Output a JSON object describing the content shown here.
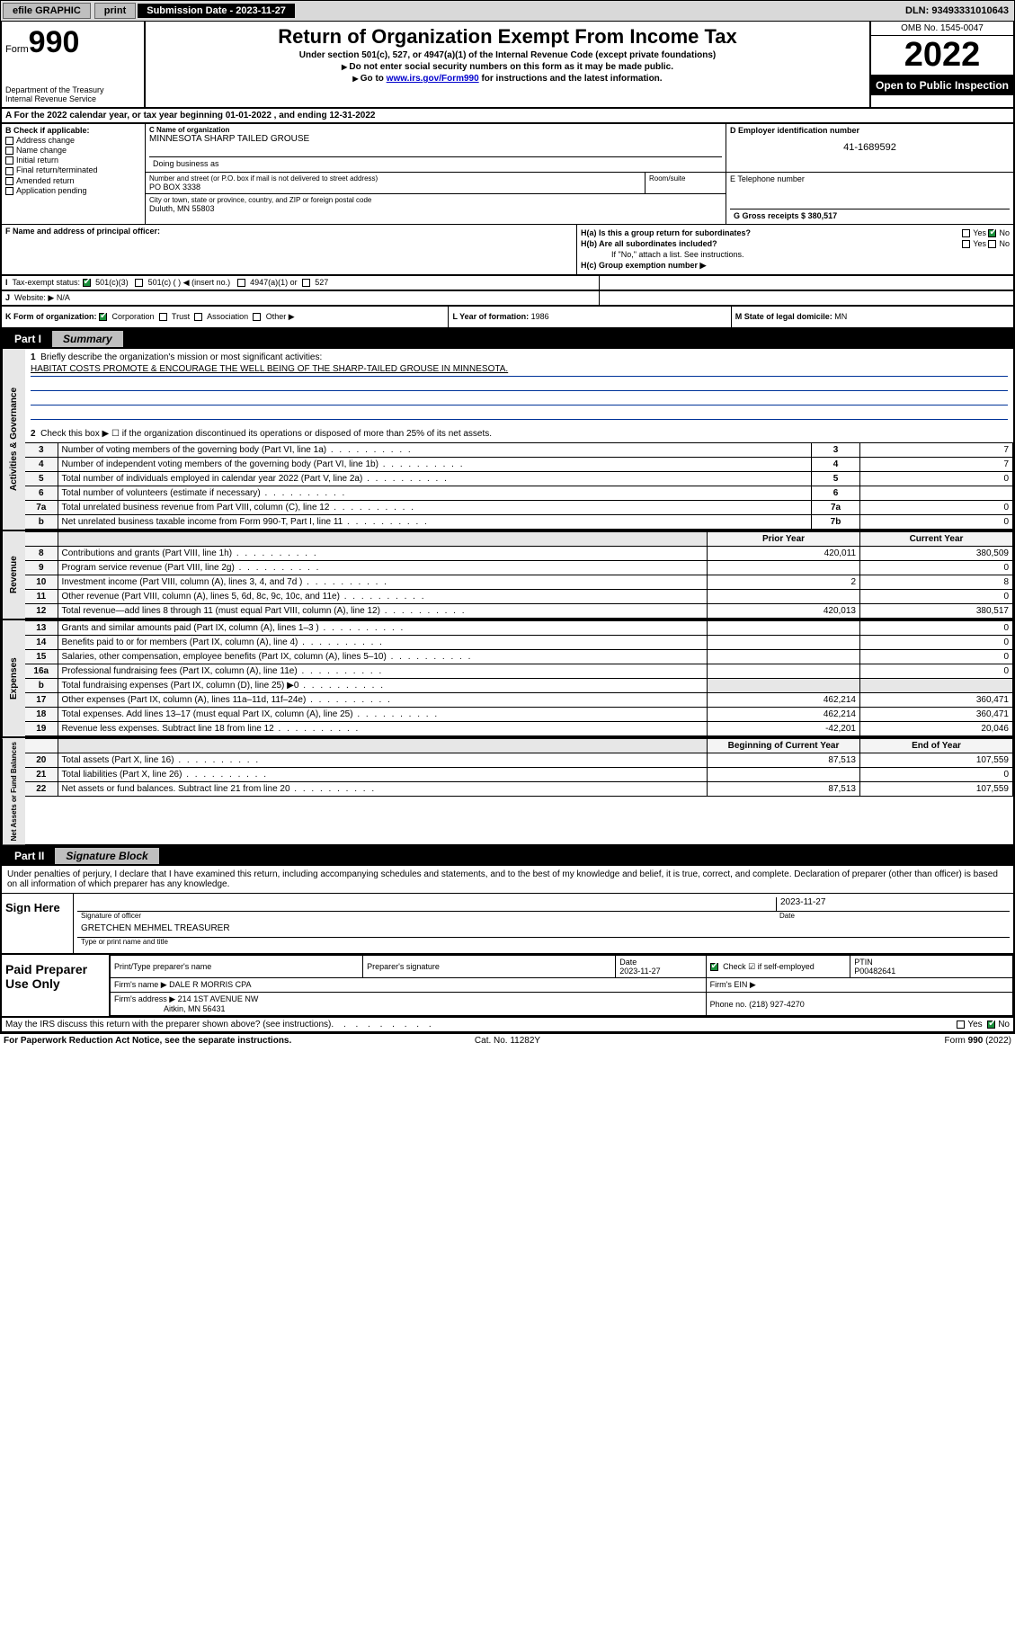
{
  "topbar": {
    "efile": "efile GRAPHIC",
    "print": "print",
    "submission_label": "Submission Date - 2023-11-27",
    "dln": "DLN: 93493331010643"
  },
  "header": {
    "form_prefix": "Form",
    "form_no": "990",
    "dept": "Department of the Treasury",
    "irs": "Internal Revenue Service",
    "title": "Return of Organization Exempt From Income Tax",
    "sub1": "Under section 501(c), 527, or 4947(a)(1) of the Internal Revenue Code (except private foundations)",
    "sub2": "Do not enter social security numbers on this form as it may be made public.",
    "sub3_pre": "Go to ",
    "sub3_link": "www.irs.gov/Form990",
    "sub3_post": " for instructions and the latest information.",
    "omb": "OMB No. 1545-0047",
    "year": "2022",
    "open": "Open to Public Inspection"
  },
  "row_a": {
    "text_pre": "A For the 2022 calendar year, or tax year beginning ",
    "begin": "01-01-2022",
    "mid": " , and ending ",
    "end": "12-31-2022"
  },
  "b": {
    "label": "B Check if applicable:",
    "opts": [
      "Address change",
      "Name change",
      "Initial return",
      "Final return/terminated",
      "Amended return",
      "Application pending"
    ]
  },
  "c": {
    "name_lbl": "C Name of organization",
    "name_val": "MINNESOTA SHARP TAILED GROUSE",
    "dba_lbl": "Doing business as",
    "dba_val": "",
    "street_lbl": "Number and street (or P.O. box if mail is not delivered to street address)",
    "street_val": "PO BOX 3338",
    "room_lbl": "Room/suite",
    "city_lbl": "City or town, state or province, country, and ZIP or foreign postal code",
    "city_val": "Duluth, MN  55803"
  },
  "d": {
    "lbl": "D Employer identification number",
    "val": "41-1689592"
  },
  "e": {
    "lbl": "E Telephone number",
    "val": ""
  },
  "g": {
    "lbl": "G Gross receipts $",
    "val": "380,517"
  },
  "f": {
    "lbl": "F  Name and address of principal officer:",
    "val": ""
  },
  "h": {
    "a": "H(a)  Is this a group return for subordinates?",
    "b": "H(b)  Are all subordinates included?",
    "b2": "If \"No,\" attach a list. See instructions.",
    "c": "H(c)  Group exemption number ▶"
  },
  "i": {
    "lbl": "Tax-exempt status:",
    "opt1": "501(c)(3)",
    "opt2": "501(c) (  ) ◀ (insert no.)",
    "opt3": "4947(a)(1) or",
    "opt4": "527"
  },
  "j": {
    "lbl": "Website: ▶",
    "val": "N/A"
  },
  "k": {
    "lbl": "K Form of organization:",
    "opts": [
      "Corporation",
      "Trust",
      "Association",
      "Other ▶"
    ]
  },
  "l": {
    "lbl": "L Year of formation:",
    "val": "1986"
  },
  "m": {
    "lbl": "M State of legal domicile:",
    "val": "MN"
  },
  "part1": {
    "pt": "Part I",
    "ttl": "Summary"
  },
  "gov": {
    "tab": "Activities & Governance",
    "q1": "Briefly describe the organization's mission or most significant activities:",
    "q1val": "HABITAT COSTS PROMOTE & ENCOURAGE THE WELL BEING OF THE SHARP-TAILED GROUSE IN MINNESOTA.",
    "q2": "Check this box ▶ ☐  if the organization discontinued its operations or disposed of more than 25% of its net assets.",
    "rows": [
      {
        "n": "3",
        "d": "Number of voting members of the governing body (Part VI, line 1a)",
        "box": "3",
        "v": "7"
      },
      {
        "n": "4",
        "d": "Number of independent voting members of the governing body (Part VI, line 1b)",
        "box": "4",
        "v": "7"
      },
      {
        "n": "5",
        "d": "Total number of individuals employed in calendar year 2022 (Part V, line 2a)",
        "box": "5",
        "v": "0"
      },
      {
        "n": "6",
        "d": "Total number of volunteers (estimate if necessary)",
        "box": "6",
        "v": ""
      },
      {
        "n": "7a",
        "d": "Total unrelated business revenue from Part VIII, column (C), line 12",
        "box": "7a",
        "v": "0"
      },
      {
        "n": "b",
        "d": "Net unrelated business taxable income from Form 990-T, Part I, line 11",
        "box": "7b",
        "v": "0"
      }
    ]
  },
  "rev": {
    "tab": "Revenue",
    "hdr_prior": "Prior Year",
    "hdr_curr": "Current Year",
    "rows": [
      {
        "n": "8",
        "d": "Contributions and grants (Part VIII, line 1h)",
        "p": "420,011",
        "c": "380,509"
      },
      {
        "n": "9",
        "d": "Program service revenue (Part VIII, line 2g)",
        "p": "",
        "c": "0"
      },
      {
        "n": "10",
        "d": "Investment income (Part VIII, column (A), lines 3, 4, and 7d )",
        "p": "2",
        "c": "8"
      },
      {
        "n": "11",
        "d": "Other revenue (Part VIII, column (A), lines 5, 6d, 8c, 9c, 10c, and 11e)",
        "p": "",
        "c": "0"
      },
      {
        "n": "12",
        "d": "Total revenue—add lines 8 through 11 (must equal Part VIII, column (A), line 12)",
        "p": "420,013",
        "c": "380,517"
      }
    ]
  },
  "exp": {
    "tab": "Expenses",
    "rows": [
      {
        "n": "13",
        "d": "Grants and similar amounts paid (Part IX, column (A), lines 1–3 )",
        "p": "",
        "c": "0"
      },
      {
        "n": "14",
        "d": "Benefits paid to or for members (Part IX, column (A), line 4)",
        "p": "",
        "c": "0"
      },
      {
        "n": "15",
        "d": "Salaries, other compensation, employee benefits (Part IX, column (A), lines 5–10)",
        "p": "",
        "c": "0"
      },
      {
        "n": "16a",
        "d": "Professional fundraising fees (Part IX, column (A), line 11e)",
        "p": "",
        "c": "0"
      },
      {
        "n": "b",
        "d": "Total fundraising expenses (Part IX, column (D), line 25) ▶0",
        "p": "SHADE",
        "c": "SHADE"
      },
      {
        "n": "17",
        "d": "Other expenses (Part IX, column (A), lines 11a–11d, 11f–24e)",
        "p": "462,214",
        "c": "360,471"
      },
      {
        "n": "18",
        "d": "Total expenses. Add lines 13–17 (must equal Part IX, column (A), line 25)",
        "p": "462,214",
        "c": "360,471"
      },
      {
        "n": "19",
        "d": "Revenue less expenses. Subtract line 18 from line 12",
        "p": "-42,201",
        "c": "20,046"
      }
    ]
  },
  "net": {
    "tab": "Net Assets or Fund Balances",
    "hdr_beg": "Beginning of Current Year",
    "hdr_end": "End of Year",
    "rows": [
      {
        "n": "20",
        "d": "Total assets (Part X, line 16)",
        "p": "87,513",
        "c": "107,559"
      },
      {
        "n": "21",
        "d": "Total liabilities (Part X, line 26)",
        "p": "",
        "c": "0"
      },
      {
        "n": "22",
        "d": "Net assets or fund balances. Subtract line 21 from line 20",
        "p": "87,513",
        "c": "107,559"
      }
    ]
  },
  "part2": {
    "pt": "Part II",
    "ttl": "Signature Block"
  },
  "sig": {
    "decl": "Under penalties of perjury, I declare that I have examined this return, including accompanying schedules and statements, and to the best of my knowledge and belief, it is true, correct, and complete. Declaration of preparer (other than officer) is based on all information of which preparer has any knowledge.",
    "here": "Sign Here",
    "sig_officer": "Signature of officer",
    "date": "Date",
    "date_val": "2023-11-27",
    "name_title": "GRETCHEN MEHMEL TREASURER",
    "name_lbl": "Type or print name and title"
  },
  "paid": {
    "left": "Paid Preparer Use Only",
    "h1": "Print/Type preparer's name",
    "h2": "Preparer's signature",
    "h3": "Date",
    "h3v": "2023-11-27",
    "h4": "Check ☑ if self-employed",
    "h5": "PTIN",
    "h5v": "P00482641",
    "firm_name_lbl": "Firm's name    ▶",
    "firm_name": "DALE R MORRIS CPA",
    "firm_ein_lbl": "Firm's EIN ▶",
    "firm_addr_lbl": "Firm's address ▶",
    "firm_addr1": "214 1ST AVENUE NW",
    "firm_addr2": "Aitkin, MN  56431",
    "phone_lbl": "Phone no.",
    "phone": "(218) 927-4270"
  },
  "irs_discuss": "May the IRS discuss this return with the preparer shown above? (see instructions)",
  "footer": {
    "l": "For Paperwork Reduction Act Notice, see the separate instructions.",
    "m": "Cat. No. 11282Y",
    "r": "Form 990 (2022)"
  },
  "colors": {
    "link": "#0000cc",
    "topbar_bg": "#d9d9d9",
    "line_blue": "#003399"
  }
}
